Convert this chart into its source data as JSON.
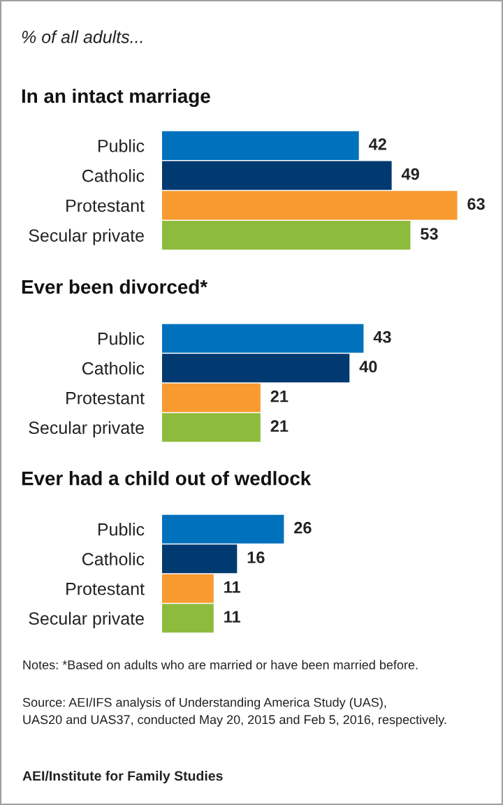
{
  "chart_data": [
    {
      "type": "bar",
      "orientation": "horizontal",
      "subtitle": "% of all adults...",
      "title": "In an intact marriage",
      "categories": [
        "Public",
        "Catholic",
        "Protestant",
        "Secular private"
      ],
      "values": [
        42,
        49,
        63,
        53
      ],
      "colors": [
        "#0071bc",
        "#003a70",
        "#f79a30",
        "#8dbb3c"
      ],
      "tick_labels": "y",
      "data_labels": true
    },
    {
      "type": "bar",
      "orientation": "horizontal",
      "title": "Ever been divorced*",
      "categories": [
        "Public",
        "Catholic",
        "Protestant",
        "Secular private"
      ],
      "values": [
        43,
        40,
        21,
        21
      ],
      "colors": [
        "#0071bc",
        "#003a70",
        "#f79a30",
        "#8dbb3c"
      ],
      "tick_labels": "y",
      "data_labels": true
    },
    {
      "type": "bar",
      "orientation": "horizontal",
      "title": "Ever had a child out of wedlock",
      "categories": [
        "Public",
        "Catholic",
        "Protestant",
        "Secular private"
      ],
      "values": [
        26,
        16,
        11,
        11
      ],
      "colors": [
        "#0071bc",
        "#003a70",
        "#f79a30",
        "#8dbb3c"
      ],
      "tick_labels": "y",
      "data_labels": true,
      "annotations": [
        "Notes: *Based on adults who are married or have been married before.",
        "Source: AEI/IFS analysis of Understanding America Study (UAS),\nUAS20 and UAS37, conducted May 20, 2015 and Feb 5, 2016, respectively.",
        "AEI/Institute for Family Studies"
      ]
    }
  ]
}
